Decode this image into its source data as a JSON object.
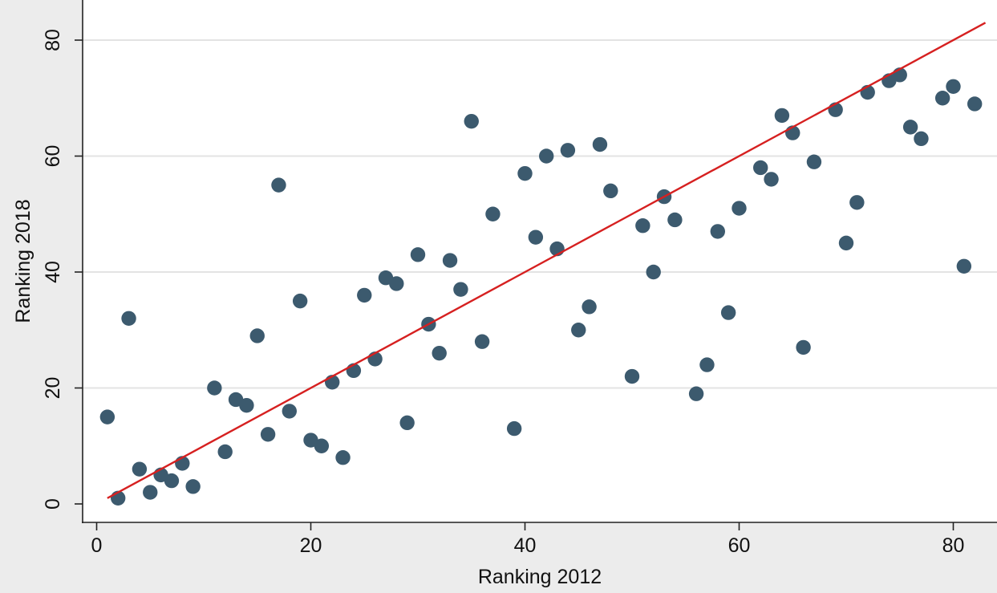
{
  "chart_data": {
    "type": "scatter",
    "title": "",
    "xlabel": "Ranking 2012",
    "ylabel": "Ranking 2018",
    "xlim": [
      -1,
      84
    ],
    "ylim": [
      -2,
      86
    ],
    "xticks": [
      0,
      20,
      40,
      60,
      80
    ],
    "yticks": [
      0,
      20,
      40,
      60,
      80
    ],
    "xtick_labels": [
      "0",
      "20",
      "40",
      "60",
      "80"
    ],
    "ytick_labels": [
      "0",
      "20",
      "40",
      "60",
      "80"
    ],
    "grid": "horizontal",
    "legend": "none",
    "colors": {
      "background": "#ececec",
      "plot_background": "#ffffff",
      "grid": "#e3e3e3",
      "marker": "#3c5a6e",
      "fit_line": "#d62020",
      "axis": "#222222"
    },
    "series": [
      {
        "kind": "points",
        "points": [
          [
            1,
            15
          ],
          [
            2,
            1
          ],
          [
            3,
            32
          ],
          [
            4,
            6
          ],
          [
            5,
            2
          ],
          [
            6,
            5
          ],
          [
            7,
            4
          ],
          [
            8,
            7
          ],
          [
            9,
            3
          ],
          [
            11,
            20
          ],
          [
            12,
            9
          ],
          [
            13,
            18
          ],
          [
            14,
            17
          ],
          [
            15,
            29
          ],
          [
            16,
            12
          ],
          [
            17,
            55
          ],
          [
            18,
            16
          ],
          [
            19,
            35
          ],
          [
            20,
            11
          ],
          [
            21,
            10
          ],
          [
            22,
            21
          ],
          [
            23,
            8
          ],
          [
            24,
            23
          ],
          [
            25,
            36
          ],
          [
            26,
            25
          ],
          [
            27,
            39
          ],
          [
            28,
            38
          ],
          [
            29,
            14
          ],
          [
            30,
            43
          ],
          [
            31,
            31
          ],
          [
            32,
            26
          ],
          [
            33,
            42
          ],
          [
            34,
            37
          ],
          [
            35,
            66
          ],
          [
            36,
            28
          ],
          [
            37,
            50
          ],
          [
            39,
            13
          ],
          [
            40,
            57
          ],
          [
            41,
            46
          ],
          [
            42,
            60
          ],
          [
            43,
            44
          ],
          [
            44,
            61
          ],
          [
            45,
            30
          ],
          [
            46,
            34
          ],
          [
            47,
            62
          ],
          [
            48,
            54
          ],
          [
            50,
            22
          ],
          [
            51,
            48
          ],
          [
            52,
            40
          ],
          [
            53,
            53
          ],
          [
            54,
            49
          ],
          [
            56,
            19
          ],
          [
            57,
            24
          ],
          [
            58,
            47
          ],
          [
            59,
            33
          ],
          [
            60,
            51
          ],
          [
            62,
            58
          ],
          [
            63,
            56
          ],
          [
            64,
            67
          ],
          [
            65,
            64
          ],
          [
            66,
            27
          ],
          [
            67,
            59
          ],
          [
            69,
            68
          ],
          [
            70,
            45
          ],
          [
            71,
            52
          ],
          [
            72,
            71
          ],
          [
            74,
            73
          ],
          [
            75,
            74
          ],
          [
            76,
            65
          ],
          [
            77,
            63
          ],
          [
            79,
            70
          ],
          [
            80,
            72
          ],
          [
            81,
            41
          ],
          [
            82,
            69
          ]
        ]
      },
      {
        "kind": "fit-line",
        "x": [
          1,
          83
        ],
        "y": [
          1,
          83
        ]
      }
    ]
  }
}
